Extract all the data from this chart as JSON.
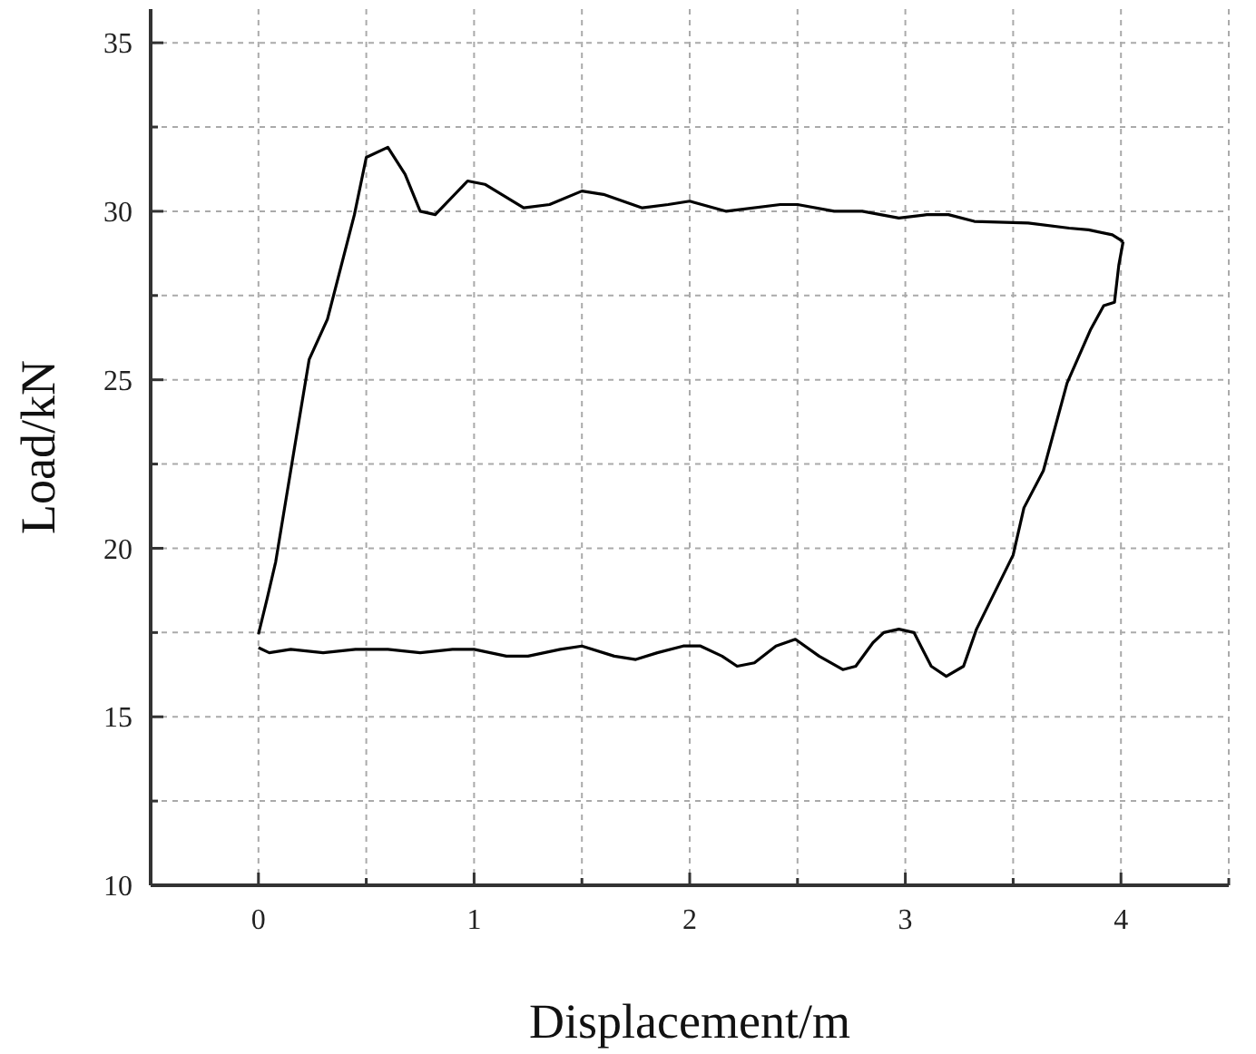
{
  "chart_data": {
    "type": "line",
    "xlabel": "Displacement/m",
    "ylabel": "Load/kN",
    "xlim": [
      -0.5,
      4.5
    ],
    "ylim": [
      10,
      36
    ],
    "xticks": [
      {
        "value": -0.5,
        "label": null
      },
      0,
      {
        "value": 0.5,
        "label": null
      },
      1,
      {
        "value": 1.5,
        "label": null
      },
      2,
      {
        "value": 2.5,
        "label": null
      },
      3,
      {
        "value": 3.5,
        "label": null
      },
      4,
      {
        "value": 4.5,
        "label": null
      }
    ],
    "yticks": [
      10,
      {
        "value": 12.5,
        "label": null
      },
      15,
      {
        "value": 17.5,
        "label": null
      },
      20,
      {
        "value": 22.5,
        "label": null
      },
      25,
      {
        "value": 27.5,
        "label": null
      },
      30,
      {
        "value": 32.5,
        "label": null
      },
      35
    ],
    "grid": true,
    "marker": "none",
    "line_style": "solid",
    "series": [
      {
        "color": "#000000",
        "x": [
          0,
          0.04,
          0.08,
          0.165,
          0.235,
          0.32,
          0.445,
          0.5,
          0.6,
          0.68,
          0.75,
          0.82,
          0.97,
          1.05,
          1.23,
          1.35,
          1.5,
          1.6,
          1.78,
          1.9,
          2.0,
          2.17,
          2.42,
          2.5,
          2.67,
          2.8,
          2.97,
          3.1,
          3.2,
          3.32,
          3.57,
          3.76,
          3.85,
          3.96,
          4.01
        ],
        "values": [
          17.45,
          18.5,
          19.6,
          22.9,
          25.6,
          26.8,
          29.9,
          31.6,
          31.9,
          31.1,
          30.0,
          29.9,
          30.9,
          30.8,
          30.1,
          30.2,
          30.6,
          30.5,
          30.1,
          30.2,
          30.3,
          30.0,
          30.2,
          30.2,
          30.0,
          30.0,
          29.8,
          29.9,
          29.9,
          29.7,
          29.65,
          29.5,
          29.45,
          29.3,
          29.1
        ]
      },
      {
        "color": "#000000",
        "x": [
          4.01,
          3.99,
          3.97,
          3.92,
          3.86,
          3.75,
          3.64,
          3.55,
          3.5,
          3.33,
          3.27,
          3.19,
          3.12,
          3.04,
          2.97,
          2.9,
          2.85,
          2.77,
          2.71,
          2.6,
          2.49,
          2.4,
          2.3,
          2.22,
          2.15,
          2.05,
          1.97,
          1.85,
          1.75,
          1.65,
          1.5,
          1.4,
          1.25,
          1.15,
          1.0,
          0.9,
          0.75,
          0.6,
          0.45,
          0.3,
          0.15,
          0.05,
          0
        ],
        "values": [
          29.1,
          28.4,
          27.3,
          27.2,
          26.5,
          24.9,
          22.3,
          21.2,
          19.8,
          17.6,
          16.5,
          16.2,
          16.5,
          17.5,
          17.6,
          17.5,
          17.2,
          16.5,
          16.4,
          16.8,
          17.3,
          17.1,
          16.6,
          16.5,
          16.8,
          17.1,
          17.1,
          16.9,
          16.7,
          16.8,
          17.1,
          17.0,
          16.8,
          16.8,
          17.0,
          17.0,
          16.9,
          17.0,
          17.0,
          16.9,
          17.0,
          16.9,
          17.05
        ]
      }
    ]
  }
}
